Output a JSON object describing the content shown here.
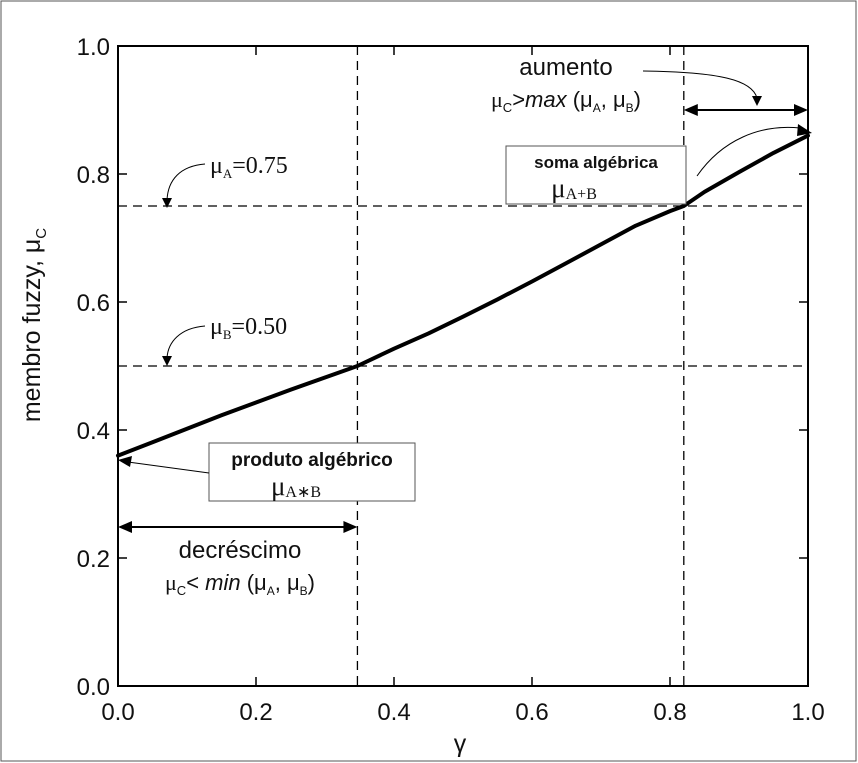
{
  "chart_data": {
    "type": "line",
    "xlabel": "γ",
    "ylabel_main": "membro fuzzy, μ",
    "ylabel_sub": "C",
    "xlim": [
      0.0,
      1.0
    ],
    "ylim": [
      0.0,
      1.0
    ],
    "xticks": [
      0.0,
      0.2,
      0.4,
      0.6,
      0.8,
      1.0
    ],
    "xtick_labels": [
      "0.0",
      "0.2",
      "0.4",
      "0.6",
      "0.8",
      "1.0"
    ],
    "yticks": [
      0.0,
      0.2,
      0.4,
      0.6,
      0.8,
      1.0
    ],
    "ytick_labels": [
      "0.0",
      "0.2",
      "0.4",
      "0.6",
      "0.8",
      "1.0"
    ],
    "grid": false,
    "series": [
      {
        "x": [
          0.0,
          0.05,
          0.1,
          0.15,
          0.2,
          0.25,
          0.3,
          0.347,
          0.4,
          0.45,
          0.5,
          0.55,
          0.6,
          0.65,
          0.7,
          0.75,
          0.8,
          0.82,
          0.85,
          0.9,
          0.95,
          1.0
        ],
        "y": [
          0.36,
          0.381,
          0.402,
          0.423,
          0.443,
          0.463,
          0.482,
          0.5,
          0.527,
          0.551,
          0.577,
          0.604,
          0.632,
          0.661,
          0.69,
          0.719,
          0.742,
          0.75,
          0.772,
          0.803,
          0.833,
          0.86
        ]
      }
    ],
    "reference_lines": {
      "horizontal": [
        0.75,
        0.5
      ],
      "vertical": [
        0.347,
        0.82
      ]
    },
    "annotations": {
      "mu_a": {
        "symbol": "μ",
        "sub": "A",
        "value": "=0.75"
      },
      "mu_b": {
        "symbol": "μ",
        "sub": "B",
        "value": "=0.50"
      },
      "aumento": {
        "title": "aumento",
        "line_mu": "μ",
        "line_c": "C",
        "line_gt": ">",
        "line_fn": "max",
        "line_args_open": " (μ",
        "line_a": "A",
        "line_sep": ", μ",
        "line_b": "B",
        "line_close": ")"
      },
      "soma": {
        "title": "soma algébrica",
        "mu": "μ",
        "sub": "A+B"
      },
      "produto": {
        "title": "produto algébrico",
        "mu": "μ",
        "sub": "A∗B"
      },
      "decrescimo": {
        "title": "decréscimo",
        "line_mu": "μ",
        "line_c": "C",
        "line_lt": "< ",
        "line_fn": "min",
        "line_args_open": " (μ",
        "line_a": "A",
        "line_sep": ", μ",
        "line_b": "B",
        "line_close": ")"
      }
    }
  }
}
